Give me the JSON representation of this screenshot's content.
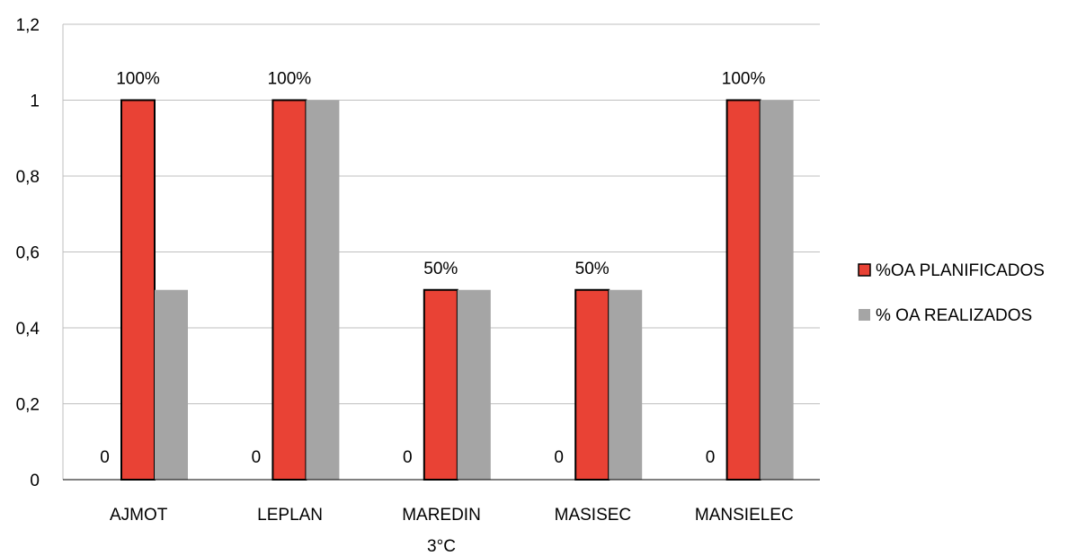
{
  "chart_data": {
    "type": "bar",
    "title": "",
    "xlabel": "3°C",
    "ylabel": "",
    "ylim": [
      0,
      1.2
    ],
    "y_ticks": [
      0,
      0.2,
      0.4,
      0.6,
      0.8,
      1,
      1.2
    ],
    "y_tick_labels": [
      "0",
      "0,2",
      "0,4",
      "0,6",
      "0,8",
      "1",
      "1,2"
    ],
    "grid": true,
    "legend_position": "right",
    "categories": [
      "AJMOT",
      "LEPLAN",
      "MAREDIN",
      "MASISEC",
      "MANSIELEC"
    ],
    "series": [
      {
        "name": "",
        "values": [
          0,
          0,
          0,
          0,
          0
        ],
        "data_labels": [
          "0",
          "0",
          "0",
          "0",
          "0"
        ],
        "color": "#ffffff",
        "show_in_legend": false
      },
      {
        "name": "%OA PLANIFICADOS",
        "values": [
          1,
          1,
          0.5,
          0.5,
          1
        ],
        "data_labels": [
          "100%",
          "100%",
          "50%",
          "50%",
          "100%"
        ],
        "color": "#e94235",
        "outline": "#000000",
        "show_in_legend": true
      },
      {
        "name": "% OA REALIZADOS",
        "values": [
          0.5,
          1,
          0.5,
          0.5,
          1
        ],
        "data_labels": [
          "",
          "",
          "",
          "",
          ""
        ],
        "color": "#a5a5a5",
        "show_in_legend": true
      }
    ]
  }
}
